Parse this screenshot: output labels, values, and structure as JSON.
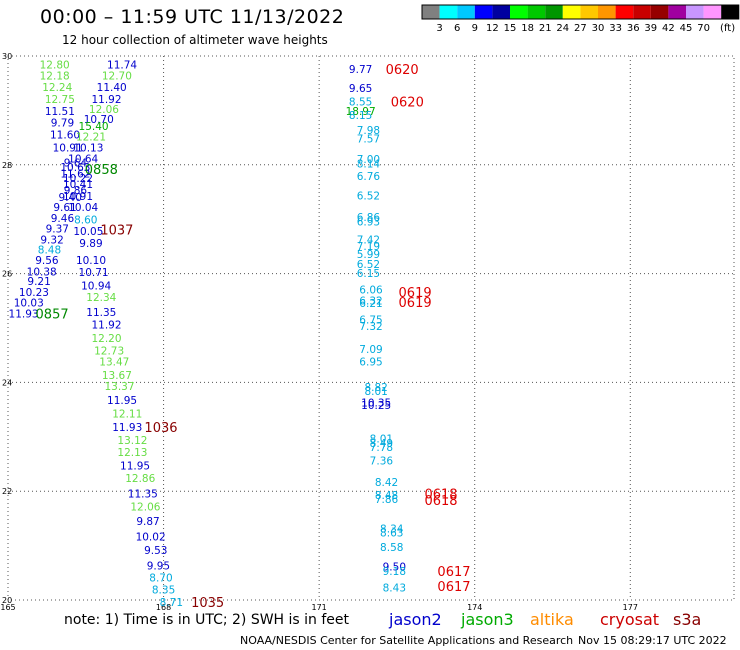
{
  "header": {
    "title": "00:00 – 11:59 UTC 11/13/2022",
    "subtitle": "12 hour collection of altimeter wave heights"
  },
  "footer": {
    "note": "note: 1) Time is in UTC; 2) SWH is in feet",
    "credit": "NOAA/NESDIS Center for Satellite Applications and Research",
    "timestamp": "Nov 15 08:29:17 UTC 2022"
  },
  "satellites": [
    {
      "name": "jason2",
      "color": "#0000cc"
    },
    {
      "name": "jason3",
      "color": "#00aa00"
    },
    {
      "name": "altika",
      "color": "#ff8c00"
    },
    {
      "name": "cryosat",
      "color": "#cc0000"
    },
    {
      "name": "s3a",
      "color": "#880000"
    }
  ],
  "colorbar": {
    "unit": "(ft)",
    "labels": [
      "3",
      "6",
      "9",
      "12",
      "15",
      "18",
      "21",
      "24",
      "27",
      "30",
      "33",
      "36",
      "39",
      "42",
      "45",
      "70"
    ],
    "colors": [
      "#808080",
      "#00ffff",
      "#00c8ff",
      "#0000ff",
      "#0000a0",
      "#00ff00",
      "#00c800",
      "#009600",
      "#ffff00",
      "#ffc800",
      "#ff9600",
      "#ff0000",
      "#c80000",
      "#960000",
      "#a000a0",
      "#c896ff",
      "#ff96ff",
      "#000000"
    ]
  },
  "chart_data": {
    "type": "scatter",
    "title": "00:00 – 11:59 UTC 11/13/2022",
    "xlim": [
      165,
      179
    ],
    "ylim": [
      20,
      30
    ],
    "x_ticks": [
      {
        "value": 165,
        "label": "165"
      },
      {
        "value": 168,
        "label": "168"
      },
      {
        "value": 171,
        "label": "171"
      },
      {
        "value": 174,
        "label": "174"
      },
      {
        "value": 177,
        "label": "177"
      }
    ],
    "y_ticks": [
      {
        "value": 20,
        "label": "20"
      },
      {
        "value": 22,
        "label": "22"
      },
      {
        "value": 24,
        "label": "24"
      },
      {
        "value": 26,
        "label": "26"
      },
      {
        "value": 28,
        "label": "28"
      },
      {
        "value": 30,
        "label": "30"
      }
    ],
    "grid": true,
    "points": [
      {
        "x": 165.9,
        "y": 29.84,
        "label": "12.80",
        "color": "#66dd44"
      },
      {
        "x": 167.2,
        "y": 29.84,
        "label": "11.74",
        "color": "#0000cc"
      },
      {
        "x": 165.9,
        "y": 29.64,
        "label": "12.18",
        "color": "#66dd44"
      },
      {
        "x": 167.1,
        "y": 29.64,
        "label": "12.70",
        "color": "#66dd44"
      },
      {
        "x": 165.95,
        "y": 29.43,
        "label": "12.24",
        "color": "#66dd44"
      },
      {
        "x": 167.0,
        "y": 29.43,
        "label": "11.40",
        "color": "#0000cc"
      },
      {
        "x": 166.0,
        "y": 29.21,
        "label": "12.75",
        "color": "#66dd44"
      },
      {
        "x": 166.9,
        "y": 29.21,
        "label": "11.92",
        "color": "#0000cc"
      },
      {
        "x": 166.85,
        "y": 29.03,
        "label": "12.06",
        "color": "#66dd44"
      },
      {
        "x": 166.0,
        "y": 28.99,
        "label": "11.51",
        "color": "#0000cc"
      },
      {
        "x": 166.75,
        "y": 28.84,
        "label": "10.70",
        "color": "#0000cc"
      },
      {
        "x": 166.05,
        "y": 28.78,
        "label": "9.79",
        "color": "#0000cc"
      },
      {
        "x": 166.65,
        "y": 28.71,
        "label": "15.40",
        "color": "#00aa00"
      },
      {
        "x": 166.1,
        "y": 28.56,
        "label": "11.60",
        "color": "#0000cc"
      },
      {
        "x": 166.6,
        "y": 28.52,
        "label": "12.21",
        "color": "#66dd44"
      },
      {
        "x": 166.15,
        "y": 28.32,
        "label": "10.91",
        "color": "#0000cc"
      },
      {
        "x": 166.55,
        "y": 28.32,
        "label": "10.13",
        "color": "#0000cc"
      },
      {
        "x": 166.45,
        "y": 28.12,
        "label": "10.64",
        "color": "#0000cc"
      },
      {
        "x": 166.3,
        "y": 28.04,
        "label": "9.64",
        "color": "#0000cc"
      },
      {
        "x": 166.3,
        "y": 27.96,
        "label": "10.63",
        "color": "#0000cc"
      },
      {
        "x": 166.3,
        "y": 27.84,
        "label": "11.62",
        "color": "#0000cc"
      },
      {
        "x": 166.35,
        "y": 27.76,
        "label": "10.22",
        "color": "#0000cc"
      },
      {
        "x": 166.35,
        "y": 27.65,
        "label": "10.41",
        "color": "#0000cc"
      },
      {
        "x": 166.3,
        "y": 27.54,
        "label": "9.86",
        "color": "#0000cc"
      },
      {
        "x": 166.35,
        "y": 27.43,
        "label": "10.91",
        "color": "#0000cc"
      },
      {
        "x": 166.2,
        "y": 27.41,
        "label": "9.40",
        "color": "#0000cc"
      },
      {
        "x": 166.1,
        "y": 27.22,
        "label": "9.61",
        "color": "#0000cc"
      },
      {
        "x": 166.45,
        "y": 27.22,
        "label": "10.04",
        "color": "#0000cc"
      },
      {
        "x": 166.05,
        "y": 27.02,
        "label": "9.46",
        "color": "#0000cc"
      },
      {
        "x": 166.5,
        "y": 26.99,
        "label": "8.60",
        "color": "#00aadd"
      },
      {
        "x": 165.95,
        "y": 26.83,
        "label": "9.37",
        "color": "#0000cc"
      },
      {
        "x": 166.55,
        "y": 26.78,
        "label": "10.05",
        "color": "#0000cc"
      },
      {
        "x": 165.85,
        "y": 26.63,
        "label": "9.32",
        "color": "#0000cc"
      },
      {
        "x": 165.8,
        "y": 26.44,
        "label": "8.48",
        "color": "#00aadd"
      },
      {
        "x": 166.6,
        "y": 26.56,
        "label": "9.89",
        "color": "#0000cc"
      },
      {
        "x": 165.75,
        "y": 26.25,
        "label": "9.56",
        "color": "#0000cc"
      },
      {
        "x": 166.6,
        "y": 26.25,
        "label": "10.10",
        "color": "#0000cc"
      },
      {
        "x": 165.65,
        "y": 26.04,
        "label": "10.38",
        "color": "#0000cc"
      },
      {
        "x": 166.65,
        "y": 26.03,
        "label": "10.71",
        "color": "#0000cc"
      },
      {
        "x": 165.6,
        "y": 25.86,
        "label": "9.21",
        "color": "#0000cc"
      },
      {
        "x": 166.7,
        "y": 25.78,
        "label": "10.94",
        "color": "#0000cc"
      },
      {
        "x": 165.5,
        "y": 25.66,
        "label": "10.23",
        "color": "#0000cc"
      },
      {
        "x": 166.8,
        "y": 25.57,
        "label": "12.34",
        "color": "#66dd44"
      },
      {
        "x": 165.4,
        "y": 25.47,
        "label": "10.03",
        "color": "#0000cc"
      },
      {
        "x": 165.3,
        "y": 25.27,
        "label": "11.93",
        "color": "#0000cc"
      },
      {
        "x": 166.8,
        "y": 25.29,
        "label": "11.35",
        "color": "#0000cc"
      },
      {
        "x": 166.9,
        "y": 25.06,
        "label": "11.92",
        "color": "#0000cc"
      },
      {
        "x": 166.9,
        "y": 24.82,
        "label": "12.20",
        "color": "#66dd44"
      },
      {
        "x": 166.95,
        "y": 24.59,
        "label": "12.73",
        "color": "#66dd44"
      },
      {
        "x": 167.05,
        "y": 24.38,
        "label": "13.47",
        "color": "#66dd44"
      },
      {
        "x": 167.1,
        "y": 24.14,
        "label": "13.67",
        "color": "#66dd44"
      },
      {
        "x": 167.15,
        "y": 23.93,
        "label": "13.37",
        "color": "#66dd44"
      },
      {
        "x": 167.2,
        "y": 23.68,
        "label": "11.95",
        "color": "#0000cc"
      },
      {
        "x": 167.3,
        "y": 23.43,
        "label": "12.11",
        "color": "#66dd44"
      },
      {
        "x": 167.3,
        "y": 23.18,
        "label": "11.93",
        "color": "#0000cc"
      },
      {
        "x": 167.4,
        "y": 22.94,
        "label": "13.12",
        "color": "#66dd44"
      },
      {
        "x": 167.4,
        "y": 22.72,
        "label": "12.13",
        "color": "#66dd44"
      },
      {
        "x": 167.45,
        "y": 22.47,
        "label": "11.95",
        "color": "#0000cc"
      },
      {
        "x": 167.55,
        "y": 22.24,
        "label": "12.86",
        "color": "#66dd44"
      },
      {
        "x": 167.6,
        "y": 21.96,
        "label": "11.35",
        "color": "#0000cc"
      },
      {
        "x": 167.65,
        "y": 21.72,
        "label": "12.06",
        "color": "#66dd44"
      },
      {
        "x": 167.7,
        "y": 21.45,
        "label": "9.87",
        "color": "#0000cc"
      },
      {
        "x": 167.75,
        "y": 21.17,
        "label": "10.02",
        "color": "#0000cc"
      },
      {
        "x": 167.85,
        "y": 20.92,
        "label": "9.53",
        "color": "#0000cc"
      },
      {
        "x": 167.9,
        "y": 20.63,
        "label": "9.95",
        "color": "#0000cc"
      },
      {
        "x": 167.95,
        "y": 20.41,
        "label": "8.70",
        "color": "#00aadd"
      },
      {
        "x": 168.0,
        "y": 20.19,
        "label": "8.35",
        "color": "#00aadd"
      },
      {
        "x": 168.15,
        "y": 19.96,
        "label": "8.71",
        "color": "#00aadd"
      },
      {
        "x": 171.8,
        "y": 29.76,
        "label": "9.77",
        "color": "#0000cc"
      },
      {
        "x": 171.8,
        "y": 29.41,
        "label": "9.65",
        "color": "#0000cc"
      },
      {
        "x": 171.8,
        "y": 29.16,
        "label": "8.55",
        "color": "#00aadd"
      },
      {
        "x": 171.8,
        "y": 28.99,
        "label": "18.97",
        "color": "#00aa00"
      },
      {
        "x": 171.8,
        "y": 28.92,
        "label": "8.15",
        "color": "#00aadd"
      },
      {
        "x": 171.95,
        "y": 28.64,
        "label": "7.98",
        "color": "#00aadd"
      },
      {
        "x": 171.95,
        "y": 28.48,
        "label": "7.57",
        "color": "#00aadd"
      },
      {
        "x": 171.95,
        "y": 28.11,
        "label": "7.00",
        "color": "#00aadd"
      },
      {
        "x": 171.95,
        "y": 28.02,
        "label": "8.14",
        "color": "#00aadd"
      },
      {
        "x": 171.95,
        "y": 27.79,
        "label": "6.76",
        "color": "#00aadd"
      },
      {
        "x": 171.95,
        "y": 27.44,
        "label": "6.52",
        "color": "#00aadd"
      },
      {
        "x": 171.95,
        "y": 27.04,
        "label": "6.86",
        "color": "#00aadd"
      },
      {
        "x": 171.95,
        "y": 26.96,
        "label": "6.93",
        "color": "#00aadd"
      },
      {
        "x": 171.95,
        "y": 26.63,
        "label": "7.42",
        "color": "#00aadd"
      },
      {
        "x": 171.95,
        "y": 26.51,
        "label": "7.19",
        "color": "#00aadd"
      },
      {
        "x": 171.95,
        "y": 26.36,
        "label": "5.99",
        "color": "#00aadd"
      },
      {
        "x": 171.95,
        "y": 26.18,
        "label": "6.52",
        "color": "#00aadd"
      },
      {
        "x": 171.95,
        "y": 26.01,
        "label": "6.15",
        "color": "#00aadd"
      },
      {
        "x": 172.0,
        "y": 25.71,
        "label": "6.06",
        "color": "#00aadd"
      },
      {
        "x": 172.0,
        "y": 25.51,
        "label": "6.32",
        "color": "#00aadd"
      },
      {
        "x": 172.0,
        "y": 25.46,
        "label": "6.21",
        "color": "#00aadd"
      },
      {
        "x": 172.0,
        "y": 25.16,
        "label": "6.75",
        "color": "#00aadd"
      },
      {
        "x": 172.0,
        "y": 25.04,
        "label": "7.32",
        "color": "#00aadd"
      },
      {
        "x": 172.0,
        "y": 24.61,
        "label": "7.09",
        "color": "#00aadd"
      },
      {
        "x": 172.0,
        "y": 24.38,
        "label": "6.95",
        "color": "#00aadd"
      },
      {
        "x": 172.1,
        "y": 23.92,
        "label": "8.82",
        "color": "#00aadd"
      },
      {
        "x": 172.1,
        "y": 23.84,
        "label": "8.01",
        "color": "#00aadd"
      },
      {
        "x": 172.1,
        "y": 23.63,
        "label": "10.35",
        "color": "#0000cc"
      },
      {
        "x": 172.1,
        "y": 23.58,
        "label": "10.25",
        "color": "#0000cc"
      },
      {
        "x": 172.2,
        "y": 22.97,
        "label": "8.01",
        "color": "#00aadd"
      },
      {
        "x": 172.2,
        "y": 22.89,
        "label": "8.49",
        "color": "#00aadd"
      },
      {
        "x": 172.2,
        "y": 22.81,
        "label": "7.78",
        "color": "#00aadd"
      },
      {
        "x": 172.2,
        "y": 22.56,
        "label": "7.36",
        "color": "#00aadd"
      },
      {
        "x": 172.3,
        "y": 22.17,
        "label": "8.42",
        "color": "#00aadd"
      },
      {
        "x": 172.3,
        "y": 21.93,
        "label": "8.48",
        "color": "#00aadd"
      },
      {
        "x": 172.3,
        "y": 21.86,
        "label": "7.86",
        "color": "#00aadd"
      },
      {
        "x": 172.4,
        "y": 21.31,
        "label": "8.34",
        "color": "#00aadd"
      },
      {
        "x": 172.4,
        "y": 21.24,
        "label": "8.63",
        "color": "#00aadd"
      },
      {
        "x": 172.4,
        "y": 20.97,
        "label": "8.58",
        "color": "#00aadd"
      },
      {
        "x": 172.45,
        "y": 20.62,
        "label": "9.50",
        "color": "#0000cc"
      },
      {
        "x": 172.45,
        "y": 20.53,
        "label": "9.18",
        "color": "#00aadd"
      },
      {
        "x": 172.45,
        "y": 20.23,
        "label": "8.43",
        "color": "#00aadd"
      }
    ],
    "time_labels": [
      {
        "x": 166.8,
        "y": 27.92,
        "label": "0858",
        "color": "#008800"
      },
      {
        "x": 167.1,
        "y": 26.81,
        "label": "1037",
        "color": "#880000"
      },
      {
        "x": 165.85,
        "y": 25.27,
        "label": "0857",
        "color": "#008800"
      },
      {
        "x": 167.95,
        "y": 23.18,
        "label": "1036",
        "color": "#880000"
      },
      {
        "x": 168.85,
        "y": 19.96,
        "label": "1035",
        "color": "#880000"
      },
      {
        "x": 172.6,
        "y": 29.76,
        "label": "0620",
        "color": "#dd0000"
      },
      {
        "x": 172.7,
        "y": 29.16,
        "label": "0620",
        "color": "#dd0000"
      },
      {
        "x": 172.85,
        "y": 25.66,
        "label": "0619",
        "color": "#dd0000"
      },
      {
        "x": 172.85,
        "y": 25.48,
        "label": "0619",
        "color": "#dd0000"
      },
      {
        "x": 173.35,
        "y": 21.96,
        "label": "0618",
        "color": "#dd0000"
      },
      {
        "x": 173.35,
        "y": 21.84,
        "label": "0618",
        "color": "#dd0000"
      },
      {
        "x": 173.6,
        "y": 20.53,
        "label": "0617",
        "color": "#dd0000"
      },
      {
        "x": 173.6,
        "y": 20.26,
        "label": "0617",
        "color": "#dd0000"
      }
    ]
  }
}
